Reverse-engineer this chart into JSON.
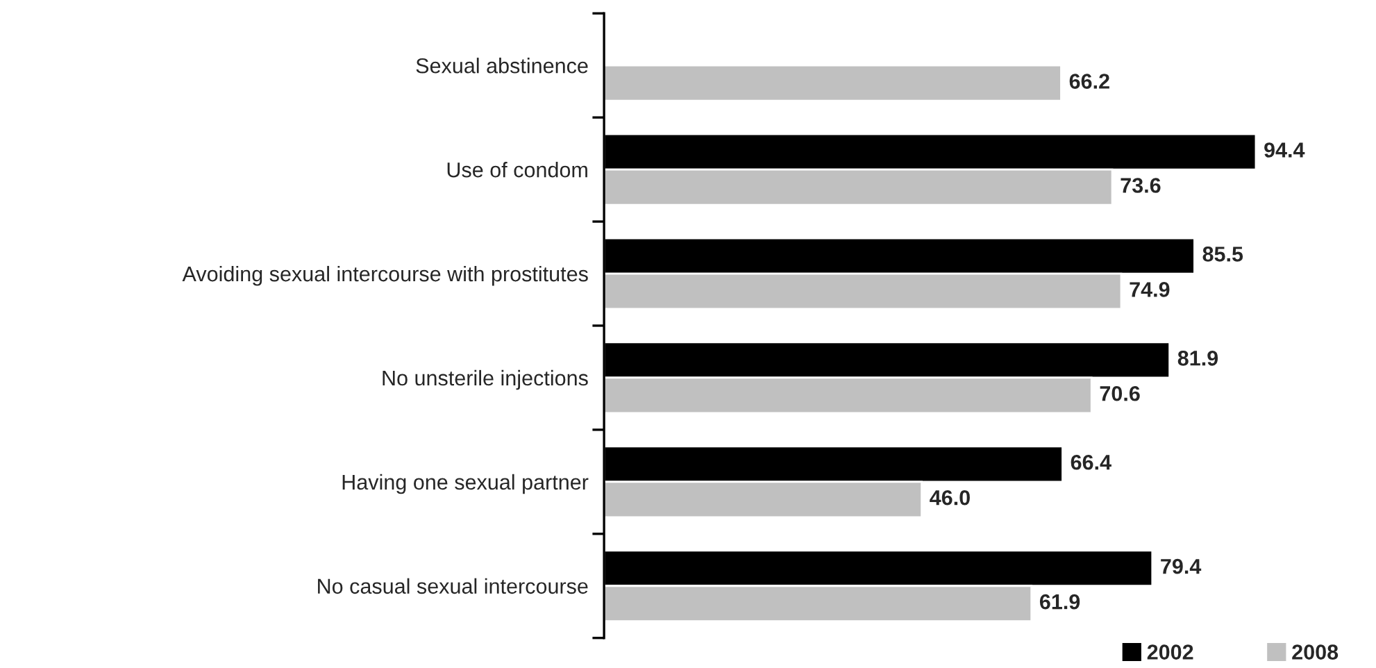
{
  "chart_data": {
    "type": "bar",
    "orientation": "horizontal",
    "categories": [
      "Sexual abstinence",
      "Use of condom",
      "Avoiding sexual intercourse with prostitutes",
      "No unsterile injections",
      "Having one sexual partner",
      "No casual sexual intercourse"
    ],
    "series": [
      {
        "name": "2002",
        "color": "#000000",
        "values": [
          null,
          94.4,
          85.5,
          81.9,
          66.4,
          79.4
        ],
        "value_labels": [
          null,
          "94.4",
          "85.5",
          "81.9",
          "66.4",
          "79.4"
        ]
      },
      {
        "name": "2008",
        "color": "#c0c0c0",
        "values": [
          66.2,
          73.6,
          74.9,
          70.6,
          46.0,
          61.9
        ],
        "value_labels": [
          "66.2",
          "73.6",
          "74.9",
          "70.6",
          "46.0",
          "61.9"
        ]
      }
    ],
    "legend": "bottom right",
    "grid": false
  }
}
